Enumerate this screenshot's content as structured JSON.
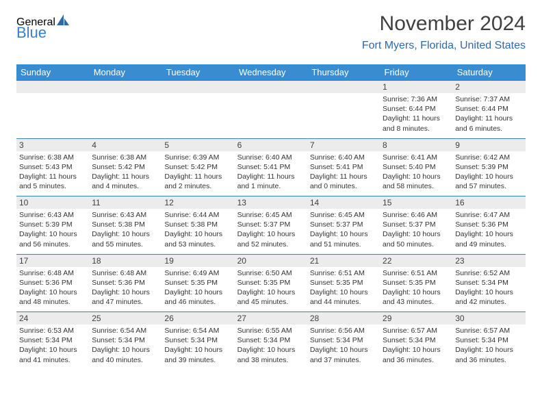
{
  "logo": {
    "line1": "General",
    "line2": "Blue",
    "sail_color": "#2f6aa8"
  },
  "title": "November 2024",
  "location": "Fort Myers, Florida, United States",
  "colors": {
    "header_bg": "#3a8cd0",
    "header_text": "#ffffff",
    "daynum_bg": "#ececec",
    "rule": "#3a7fc4",
    "title_text": "#404040",
    "location_text": "#2f6aa8"
  },
  "day_headers": [
    "Sunday",
    "Monday",
    "Tuesday",
    "Wednesday",
    "Thursday",
    "Friday",
    "Saturday"
  ],
  "weeks": [
    {
      "nums": [
        "",
        "",
        "",
        "",
        "",
        "1",
        "2"
      ],
      "cells": [
        null,
        null,
        null,
        null,
        null,
        {
          "sunrise": "Sunrise: 7:36 AM",
          "sunset": "Sunset: 6:44 PM",
          "day1": "Daylight: 11 hours",
          "day2": "and 8 minutes."
        },
        {
          "sunrise": "Sunrise: 7:37 AM",
          "sunset": "Sunset: 6:44 PM",
          "day1": "Daylight: 11 hours",
          "day2": "and 6 minutes."
        }
      ]
    },
    {
      "nums": [
        "3",
        "4",
        "5",
        "6",
        "7",
        "8",
        "9"
      ],
      "cells": [
        {
          "sunrise": "Sunrise: 6:38 AM",
          "sunset": "Sunset: 5:43 PM",
          "day1": "Daylight: 11 hours",
          "day2": "and 5 minutes."
        },
        {
          "sunrise": "Sunrise: 6:38 AM",
          "sunset": "Sunset: 5:42 PM",
          "day1": "Daylight: 11 hours",
          "day2": "and 4 minutes."
        },
        {
          "sunrise": "Sunrise: 6:39 AM",
          "sunset": "Sunset: 5:42 PM",
          "day1": "Daylight: 11 hours",
          "day2": "and 2 minutes."
        },
        {
          "sunrise": "Sunrise: 6:40 AM",
          "sunset": "Sunset: 5:41 PM",
          "day1": "Daylight: 11 hours",
          "day2": "and 1 minute."
        },
        {
          "sunrise": "Sunrise: 6:40 AM",
          "sunset": "Sunset: 5:41 PM",
          "day1": "Daylight: 11 hours",
          "day2": "and 0 minutes."
        },
        {
          "sunrise": "Sunrise: 6:41 AM",
          "sunset": "Sunset: 5:40 PM",
          "day1": "Daylight: 10 hours",
          "day2": "and 58 minutes."
        },
        {
          "sunrise": "Sunrise: 6:42 AM",
          "sunset": "Sunset: 5:39 PM",
          "day1": "Daylight: 10 hours",
          "day2": "and 57 minutes."
        }
      ]
    },
    {
      "nums": [
        "10",
        "11",
        "12",
        "13",
        "14",
        "15",
        "16"
      ],
      "cells": [
        {
          "sunrise": "Sunrise: 6:43 AM",
          "sunset": "Sunset: 5:39 PM",
          "day1": "Daylight: 10 hours",
          "day2": "and 56 minutes."
        },
        {
          "sunrise": "Sunrise: 6:43 AM",
          "sunset": "Sunset: 5:38 PM",
          "day1": "Daylight: 10 hours",
          "day2": "and 55 minutes."
        },
        {
          "sunrise": "Sunrise: 6:44 AM",
          "sunset": "Sunset: 5:38 PM",
          "day1": "Daylight: 10 hours",
          "day2": "and 53 minutes."
        },
        {
          "sunrise": "Sunrise: 6:45 AM",
          "sunset": "Sunset: 5:37 PM",
          "day1": "Daylight: 10 hours",
          "day2": "and 52 minutes."
        },
        {
          "sunrise": "Sunrise: 6:45 AM",
          "sunset": "Sunset: 5:37 PM",
          "day1": "Daylight: 10 hours",
          "day2": "and 51 minutes."
        },
        {
          "sunrise": "Sunrise: 6:46 AM",
          "sunset": "Sunset: 5:37 PM",
          "day1": "Daylight: 10 hours",
          "day2": "and 50 minutes."
        },
        {
          "sunrise": "Sunrise: 6:47 AM",
          "sunset": "Sunset: 5:36 PM",
          "day1": "Daylight: 10 hours",
          "day2": "and 49 minutes."
        }
      ]
    },
    {
      "nums": [
        "17",
        "18",
        "19",
        "20",
        "21",
        "22",
        "23"
      ],
      "cells": [
        {
          "sunrise": "Sunrise: 6:48 AM",
          "sunset": "Sunset: 5:36 PM",
          "day1": "Daylight: 10 hours",
          "day2": "and 48 minutes."
        },
        {
          "sunrise": "Sunrise: 6:48 AM",
          "sunset": "Sunset: 5:36 PM",
          "day1": "Daylight: 10 hours",
          "day2": "and 47 minutes."
        },
        {
          "sunrise": "Sunrise: 6:49 AM",
          "sunset": "Sunset: 5:35 PM",
          "day1": "Daylight: 10 hours",
          "day2": "and 46 minutes."
        },
        {
          "sunrise": "Sunrise: 6:50 AM",
          "sunset": "Sunset: 5:35 PM",
          "day1": "Daylight: 10 hours",
          "day2": "and 45 minutes."
        },
        {
          "sunrise": "Sunrise: 6:51 AM",
          "sunset": "Sunset: 5:35 PM",
          "day1": "Daylight: 10 hours",
          "day2": "and 44 minutes."
        },
        {
          "sunrise": "Sunrise: 6:51 AM",
          "sunset": "Sunset: 5:35 PM",
          "day1": "Daylight: 10 hours",
          "day2": "and 43 minutes."
        },
        {
          "sunrise": "Sunrise: 6:52 AM",
          "sunset": "Sunset: 5:34 PM",
          "day1": "Daylight: 10 hours",
          "day2": "and 42 minutes."
        }
      ]
    },
    {
      "nums": [
        "24",
        "25",
        "26",
        "27",
        "28",
        "29",
        "30"
      ],
      "cells": [
        {
          "sunrise": "Sunrise: 6:53 AM",
          "sunset": "Sunset: 5:34 PM",
          "day1": "Daylight: 10 hours",
          "day2": "and 41 minutes."
        },
        {
          "sunrise": "Sunrise: 6:54 AM",
          "sunset": "Sunset: 5:34 PM",
          "day1": "Daylight: 10 hours",
          "day2": "and 40 minutes."
        },
        {
          "sunrise": "Sunrise: 6:54 AM",
          "sunset": "Sunset: 5:34 PM",
          "day1": "Daylight: 10 hours",
          "day2": "and 39 minutes."
        },
        {
          "sunrise": "Sunrise: 6:55 AM",
          "sunset": "Sunset: 5:34 PM",
          "day1": "Daylight: 10 hours",
          "day2": "and 38 minutes."
        },
        {
          "sunrise": "Sunrise: 6:56 AM",
          "sunset": "Sunset: 5:34 PM",
          "day1": "Daylight: 10 hours",
          "day2": "and 37 minutes."
        },
        {
          "sunrise": "Sunrise: 6:57 AM",
          "sunset": "Sunset: 5:34 PM",
          "day1": "Daylight: 10 hours",
          "day2": "and 36 minutes."
        },
        {
          "sunrise": "Sunrise: 6:57 AM",
          "sunset": "Sunset: 5:34 PM",
          "day1": "Daylight: 10 hours",
          "day2": "and 36 minutes."
        }
      ]
    }
  ]
}
